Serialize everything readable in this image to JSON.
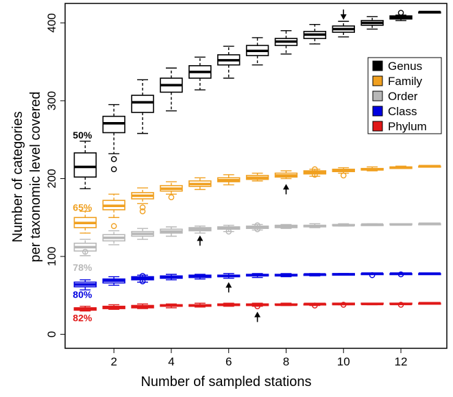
{
  "chart_data": {
    "type": "boxplot",
    "title": "",
    "xlabel": "Number of sampled stations",
    "ylabel_line1": "Number of categories",
    "ylabel_line2": "per taxonomic level covered",
    "xlim": [
      0.3,
      13.6
    ],
    "ylim": [
      -18,
      425
    ],
    "x_ticks": [
      2,
      4,
      6,
      8,
      10,
      12
    ],
    "y_ticks": [
      0,
      100,
      200,
      300,
      400
    ],
    "legend_position": "top-right",
    "series": [
      {
        "name": "Genus",
        "color": "#000000",
        "box_fill": "#ffffff",
        "boxes": [
          {
            "x": 1,
            "min": 187,
            "q1": 202,
            "med": 215,
            "q3": 233,
            "max": 248,
            "out": []
          },
          {
            "x": 2,
            "min": 232,
            "q1": 259,
            "med": 271,
            "q3": 280,
            "max": 295,
            "out": [
              225,
              212
            ]
          },
          {
            "x": 3,
            "min": 258,
            "q1": 285,
            "med": 298,
            "q3": 307,
            "max": 327,
            "out": []
          },
          {
            "x": 4,
            "min": 287,
            "q1": 311,
            "med": 320,
            "q3": 329,
            "max": 342,
            "out": []
          },
          {
            "x": 5,
            "min": 314,
            "q1": 329,
            "med": 337,
            "q3": 345,
            "max": 356,
            "out": []
          },
          {
            "x": 6,
            "min": 329,
            "q1": 346,
            "med": 352,
            "q3": 359,
            "max": 370,
            "out": []
          },
          {
            "x": 7,
            "min": 346,
            "q1": 358,
            "med": 364,
            "q3": 371,
            "max": 381,
            "out": []
          },
          {
            "x": 8,
            "min": 360,
            "q1": 371,
            "med": 376,
            "q3": 380,
            "max": 390,
            "out": []
          },
          {
            "x": 9,
            "min": 373,
            "q1": 380,
            "med": 385,
            "q3": 389,
            "max": 398,
            "out": []
          },
          {
            "x": 10,
            "min": 382,
            "q1": 388,
            "med": 392,
            "q3": 396,
            "max": 402,
            "out": []
          },
          {
            "x": 11,
            "min": 392,
            "q1": 397,
            "med": 400,
            "q3": 403,
            "max": 408,
            "out": []
          },
          {
            "x": 12,
            "min": 403,
            "q1": 405,
            "med": 407,
            "q3": 409,
            "max": 410,
            "out": [
              413
            ]
          },
          {
            "x": 13,
            "min": 414,
            "q1": 414,
            "med": 414,
            "q3": 414,
            "max": 414,
            "out": []
          }
        ]
      },
      {
        "name": "Family",
        "color": "#f0a020",
        "box_fill": "#ffffff",
        "boxes": [
          {
            "x": 1,
            "min": 130,
            "q1": 137,
            "med": 143,
            "q3": 150,
            "max": 158,
            "out": []
          },
          {
            "x": 2,
            "min": 150,
            "q1": 160,
            "med": 165,
            "q3": 172,
            "max": 180,
            "out": [
              139
            ]
          },
          {
            "x": 3,
            "min": 168,
            "q1": 174,
            "med": 178,
            "q3": 182,
            "max": 188,
            "out": [
              163,
              158
            ]
          },
          {
            "x": 4,
            "min": 180,
            "q1": 184,
            "med": 187,
            "q3": 191,
            "max": 196,
            "out": [
              176
            ]
          },
          {
            "x": 5,
            "min": 186,
            "q1": 190,
            "med": 193,
            "q3": 197,
            "max": 201,
            "out": []
          },
          {
            "x": 6,
            "min": 192,
            "q1": 196,
            "med": 198,
            "q3": 201,
            "max": 205,
            "out": []
          },
          {
            "x": 7,
            "min": 197,
            "q1": 199,
            "med": 201,
            "q3": 204,
            "max": 207,
            "out": []
          },
          {
            "x": 8,
            "min": 200,
            "q1": 202,
            "med": 204,
            "q3": 207,
            "max": 210,
            "out": []
          },
          {
            "x": 9,
            "min": 203,
            "q1": 206,
            "med": 208,
            "q3": 210,
            "max": 212,
            "out": [
              212,
              205
            ]
          },
          {
            "x": 10,
            "min": 207,
            "q1": 209,
            "med": 210,
            "q3": 212,
            "max": 214,
            "out": [
              204
            ]
          },
          {
            "x": 11,
            "min": 210,
            "q1": 211,
            "med": 212,
            "q3": 213,
            "max": 215,
            "out": []
          },
          {
            "x": 12,
            "min": 213,
            "q1": 213,
            "med": 214,
            "q3": 215,
            "max": 216,
            "out": []
          },
          {
            "x": 13,
            "min": 216,
            "q1": 216,
            "med": 216,
            "q3": 216,
            "max": 216,
            "out": []
          }
        ]
      },
      {
        "name": "Order",
        "color": "#b8b8b8",
        "box_fill": "#ffffff",
        "boxes": [
          {
            "x": 1,
            "min": 101,
            "q1": 107,
            "med": 112,
            "q3": 117,
            "max": 122,
            "out": [
              106
            ]
          },
          {
            "x": 2,
            "min": 115,
            "q1": 120,
            "med": 124,
            "q3": 128,
            "max": 133,
            "out": []
          },
          {
            "x": 3,
            "min": 122,
            "q1": 126,
            "med": 129,
            "q3": 132,
            "max": 136,
            "out": []
          },
          {
            "x": 4,
            "min": 126,
            "q1": 130,
            "med": 132,
            "q3": 135,
            "max": 138,
            "out": []
          },
          {
            "x": 5,
            "min": 130,
            "q1": 133,
            "med": 135,
            "q3": 137,
            "max": 139,
            "out": []
          },
          {
            "x": 6,
            "min": 132,
            "q1": 135,
            "med": 137,
            "q3": 138,
            "max": 140,
            "out": [
              132
            ]
          },
          {
            "x": 7,
            "min": 134,
            "q1": 136,
            "med": 138,
            "q3": 139,
            "max": 141,
            "out": [
              140,
              135
            ]
          },
          {
            "x": 8,
            "min": 136,
            "q1": 137,
            "med": 139,
            "q3": 140,
            "max": 141,
            "out": []
          },
          {
            "x": 9,
            "min": 137,
            "q1": 138,
            "med": 139,
            "q3": 140,
            "max": 142,
            "out": []
          },
          {
            "x": 10,
            "min": 139,
            "q1": 140,
            "med": 140,
            "q3": 141,
            "max": 142,
            "out": []
          },
          {
            "x": 11,
            "min": 140,
            "q1": 140,
            "med": 141,
            "q3": 141,
            "max": 142,
            "out": []
          },
          {
            "x": 12,
            "min": 141,
            "q1": 141,
            "med": 141,
            "q3": 142,
            "max": 142,
            "out": []
          },
          {
            "x": 13,
            "min": 142,
            "q1": 142,
            "med": 142,
            "q3": 142,
            "max": 142,
            "out": []
          }
        ]
      },
      {
        "name": "Class",
        "color": "#0000e0",
        "box_fill": "#ffffff",
        "boxes": [
          {
            "x": 1,
            "min": 57,
            "q1": 61,
            "med": 64,
            "q3": 67,
            "max": 70,
            "out": []
          },
          {
            "x": 2,
            "min": 63,
            "q1": 66,
            "med": 69,
            "q3": 71,
            "max": 74,
            "out": []
          },
          {
            "x": 3,
            "min": 67,
            "q1": 70,
            "med": 72,
            "q3": 74,
            "max": 76,
            "out": [
              75,
              68
            ]
          },
          {
            "x": 4,
            "min": 70,
            "q1": 72,
            "med": 73,
            "q3": 75,
            "max": 77,
            "out": []
          },
          {
            "x": 5,
            "min": 71,
            "q1": 73,
            "med": 74,
            "q3": 76,
            "max": 77,
            "out": []
          },
          {
            "x": 6,
            "min": 72,
            "q1": 74,
            "med": 75,
            "q3": 76,
            "max": 78,
            "out": []
          },
          {
            "x": 7,
            "min": 73,
            "q1": 75,
            "med": 76,
            "q3": 77,
            "max": 78,
            "out": []
          },
          {
            "x": 8,
            "min": 74,
            "q1": 75,
            "med": 76,
            "q3": 77,
            "max": 78,
            "out": []
          },
          {
            "x": 9,
            "min": 75,
            "q1": 76,
            "med": 77,
            "q3": 77,
            "max": 78,
            "out": []
          },
          {
            "x": 10,
            "min": 76,
            "q1": 76,
            "med": 77,
            "q3": 78,
            "max": 78,
            "out": []
          },
          {
            "x": 11,
            "min": 77,
            "q1": 77,
            "med": 78,
            "q3": 78,
            "max": 78,
            "out": [
              76
            ]
          },
          {
            "x": 12,
            "min": 77,
            "q1": 77,
            "med": 78,
            "q3": 78,
            "max": 78,
            "out": [
              77
            ]
          },
          {
            "x": 13,
            "min": 78,
            "q1": 78,
            "med": 78,
            "q3": 78,
            "max": 78,
            "out": []
          }
        ]
      },
      {
        "name": "Phylum",
        "color": "#e01818",
        "box_fill": "#ffffff",
        "boxes": [
          {
            "x": 1,
            "min": 30,
            "q1": 31,
            "med": 33,
            "q3": 34,
            "max": 36,
            "out": []
          },
          {
            "x": 2,
            "min": 32,
            "q1": 33,
            "med": 35,
            "q3": 36,
            "max": 38,
            "out": []
          },
          {
            "x": 3,
            "min": 33,
            "q1": 34,
            "med": 36,
            "q3": 37,
            "max": 39,
            "out": []
          },
          {
            "x": 4,
            "min": 34,
            "q1": 36,
            "med": 37,
            "q3": 38,
            "max": 39,
            "out": []
          },
          {
            "x": 5,
            "min": 35,
            "q1": 36,
            "med": 37,
            "q3": 38,
            "max": 40,
            "out": []
          },
          {
            "x": 6,
            "min": 36,
            "q1": 37,
            "med": 38,
            "q3": 39,
            "max": 40,
            "out": []
          },
          {
            "x": 7,
            "min": 36,
            "q1": 37,
            "med": 38,
            "q3": 39,
            "max": 40,
            "out": [
              36
            ]
          },
          {
            "x": 8,
            "min": 37,
            "q1": 38,
            "med": 38,
            "q3": 39,
            "max": 40,
            "out": []
          },
          {
            "x": 9,
            "min": 37,
            "q1": 38,
            "med": 39,
            "q3": 39,
            "max": 40,
            "out": [
              37
            ]
          },
          {
            "x": 10,
            "min": 38,
            "q1": 38,
            "med": 39,
            "q3": 40,
            "max": 40,
            "out": [
              38
            ]
          },
          {
            "x": 11,
            "min": 38,
            "q1": 39,
            "med": 39,
            "q3": 40,
            "max": 40,
            "out": []
          },
          {
            "x": 12,
            "min": 39,
            "q1": 39,
            "med": 39,
            "q3": 40,
            "max": 40,
            "out": [
              38
            ]
          },
          {
            "x": 13,
            "min": 40,
            "q1": 40,
            "med": 40,
            "q3": 40,
            "max": 40,
            "out": []
          }
        ]
      }
    ],
    "percent_labels": [
      {
        "text": "50%",
        "x": 1,
        "y": 256,
        "color": "#000000"
      },
      {
        "text": "65%",
        "x": 1,
        "y": 163,
        "color": "#f0a020"
      },
      {
        "text": "78%",
        "x": 1,
        "y": 86,
        "color": "#b8b8b8"
      },
      {
        "text": "80%",
        "x": 1,
        "y": 51,
        "color": "#0000e0"
      },
      {
        "text": "82%",
        "x": 1,
        "y": 21,
        "color": "#e01818"
      }
    ],
    "arrows": [
      {
        "x": 10,
        "tip_y": 404,
        "direction": "down"
      },
      {
        "x": 8,
        "tip_y": 193,
        "direction": "up"
      },
      {
        "x": 5,
        "tip_y": 127,
        "direction": "up"
      },
      {
        "x": 6,
        "tip_y": 67,
        "direction": "up"
      },
      {
        "x": 7,
        "tip_y": 29,
        "direction": "up"
      }
    ]
  }
}
